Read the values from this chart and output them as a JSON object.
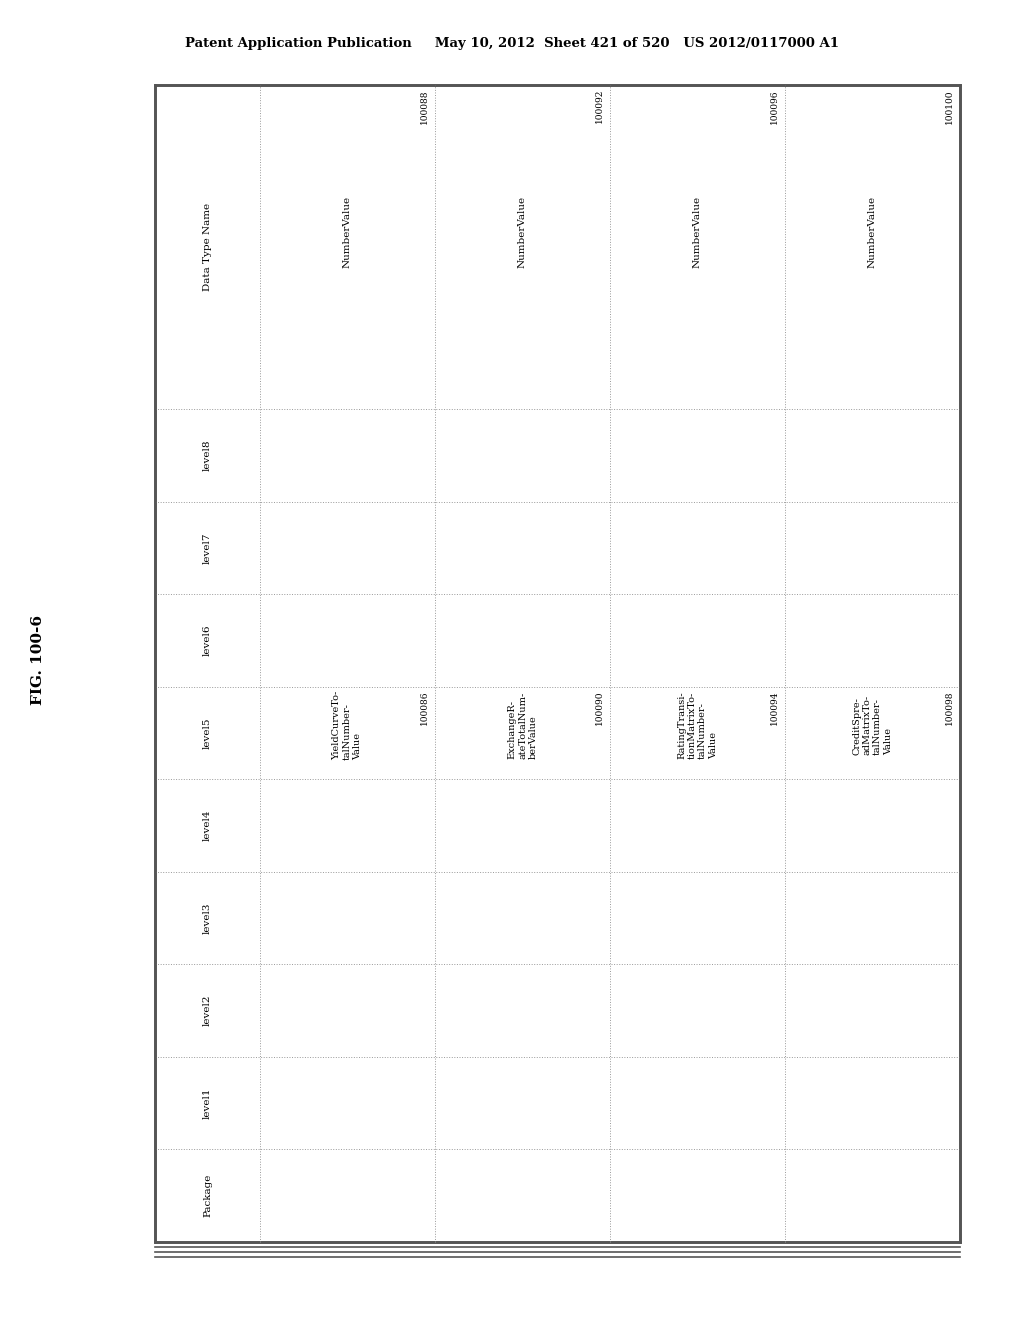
{
  "header_text": "Patent Application Publication     May 10, 2012  Sheet 421 of 520   US 2012/0117000 A1",
  "fig_label": "FIG. 100-6",
  "row_headers": [
    "Data Type Name",
    "level8",
    "level7",
    "level6",
    "level5",
    "level4",
    "level3",
    "level2",
    "level1",
    "Package"
  ],
  "num_data_cols": 4,
  "data_type_name": [
    [
      "NumberValue",
      "100088"
    ],
    [
      "NumberValue",
      "100092"
    ],
    [
      "NumberValue",
      "100096"
    ],
    [
      "NumberValue",
      "100100"
    ]
  ],
  "level5_data": [
    [
      "YieldCurveTo-\ntalNumber-\nValue",
      "100086"
    ],
    [
      "ExchangeR-\nateTotalNum-\nberValue",
      "100090"
    ],
    [
      "RatingTransi-\ntionMatrixTo-\ntalNumber-\nValue",
      "100094"
    ],
    [
      "CreditSpre-\nadMatrixTo-\ntalNumber-\nValue",
      "100098"
    ]
  ],
  "background_color": "#ffffff",
  "border_color": "#555555",
  "grid_color": "#999999"
}
